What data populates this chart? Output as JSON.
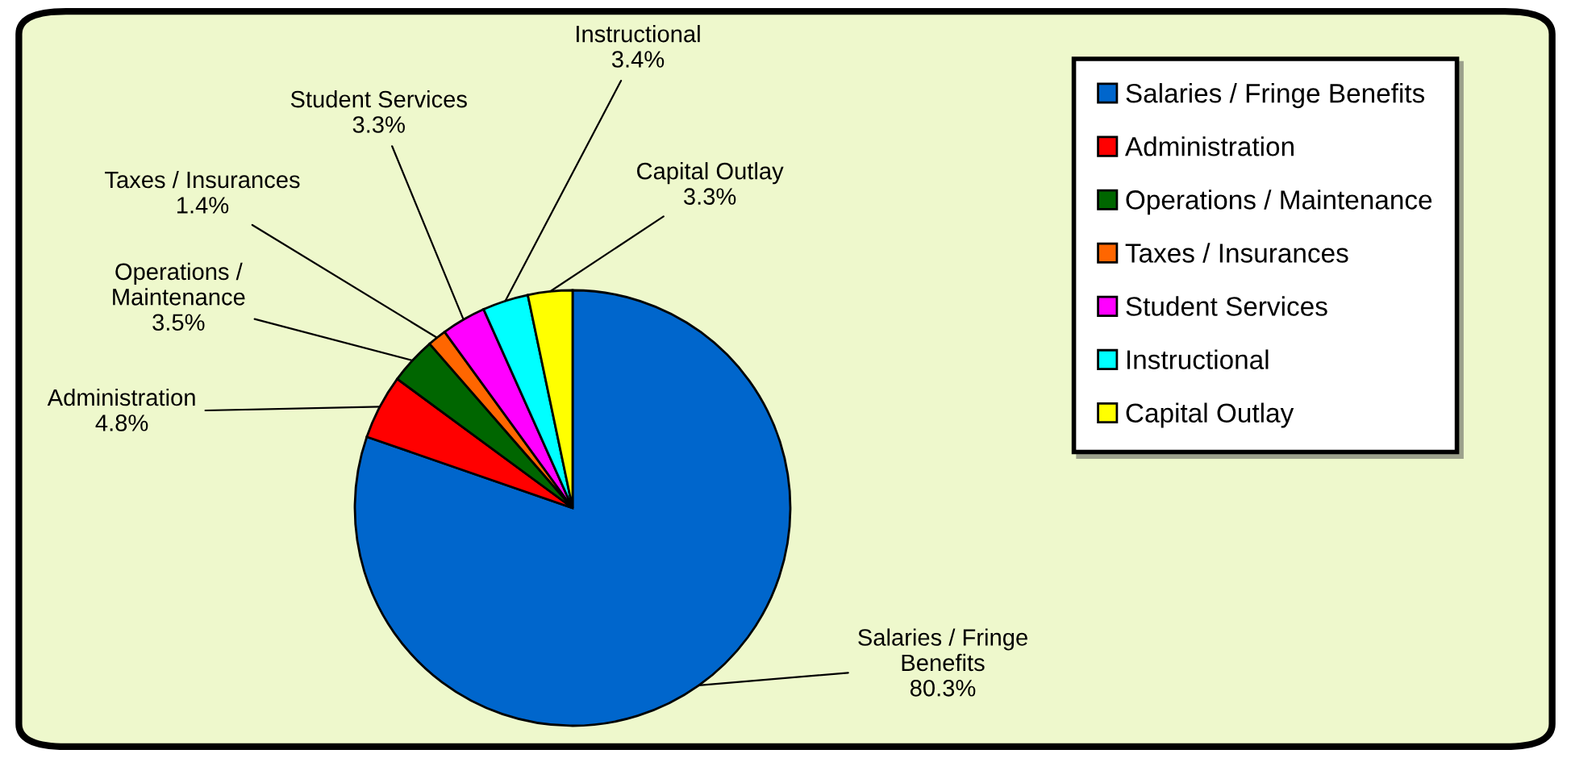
{
  "chart_data": {
    "type": "pie",
    "categories": [
      "Salaries / Fringe Benefits",
      "Administration",
      "Operations / Maintenance",
      "Taxes / Insurances",
      "Student Services",
      "Instructional",
      "Capital Outlay"
    ],
    "values": [
      80.3,
      4.8,
      3.5,
      1.4,
      3.3,
      3.4,
      3.3
    ],
    "colors": [
      "#0066cc",
      "#ff0000",
      "#006600",
      "#ff6600",
      "#ff00ff",
      "#00ffff",
      "#ffff00"
    ],
    "value_labels": [
      "80.3%",
      "4.8%",
      "3.5%",
      "1.4%",
      "3.3%",
      "3.4%",
      "3.3%"
    ],
    "legend": "right"
  }
}
